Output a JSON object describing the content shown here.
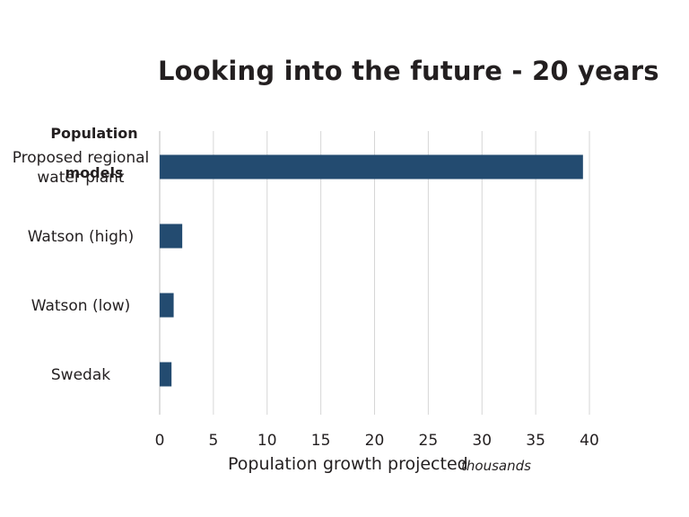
{
  "chart_data": {
    "type": "bar",
    "orientation": "horizontal",
    "title": "Looking into the future - 20 years",
    "ylabel_lines": [
      "Population",
      "models"
    ],
    "categories": [
      [
        "Proposed regional",
        "water plant"
      ],
      [
        "Watson (high)"
      ],
      [
        "Watson (low)"
      ],
      [
        "Swedak"
      ]
    ],
    "values": [
      39.4,
      2.1,
      1.3,
      1.1
    ],
    "xlabel": "Population growth projected",
    "xunit": "thousands",
    "xlim": [
      0,
      40
    ],
    "xticks": [
      0,
      5,
      10,
      15,
      20,
      25,
      30,
      35,
      40
    ],
    "grid": "vertical",
    "bar_color": "#234b70",
    "grid_color": "#d6d6d6"
  }
}
